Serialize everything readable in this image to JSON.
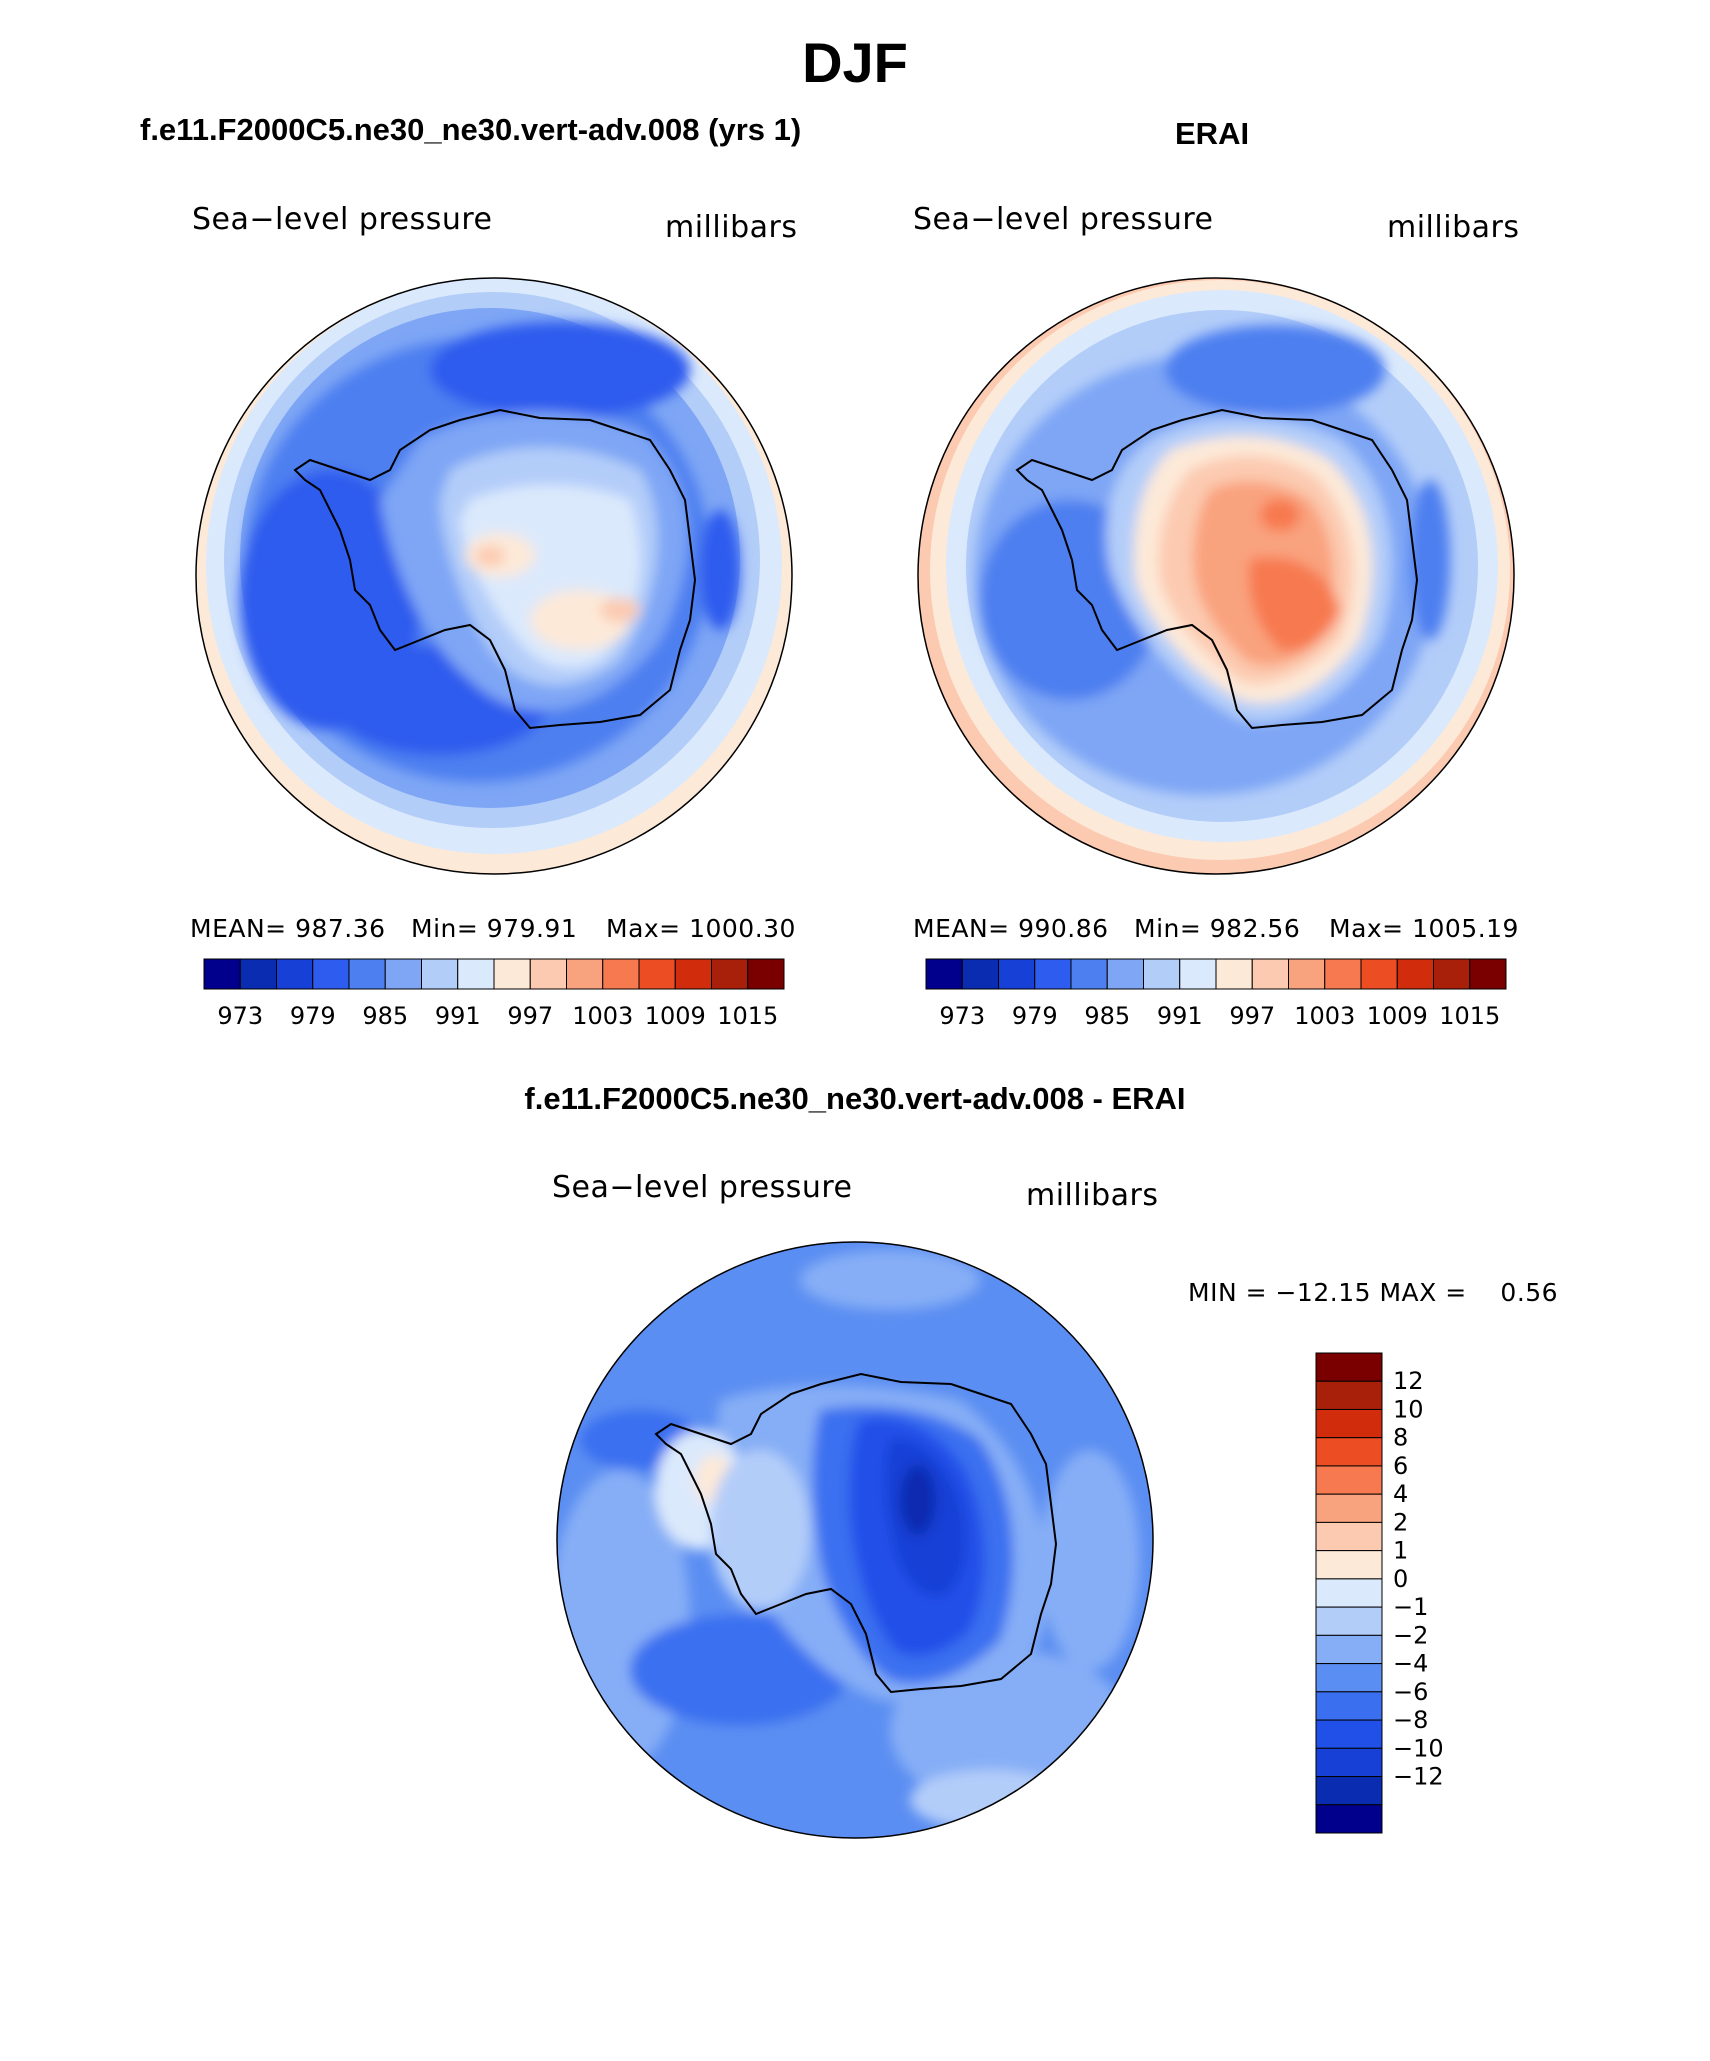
{
  "figure": {
    "title": "DJF"
  },
  "panels": [
    {
      "title": "f.e11.F2000C5.ne30_ne30.vert-adv.008 (yrs 1)",
      "left_label": "Sea−level pressure",
      "right_label": "millibars",
      "stats": {
        "mean": "MEAN= 987.36",
        "min": "Min= 979.91",
        "max": "Max= 1000.30"
      }
    },
    {
      "title": "ERAI",
      "left_label": "Sea−level pressure",
      "right_label": "millibars",
      "stats": {
        "mean": "MEAN= 990.86",
        "min": "Min= 982.56",
        "max": "Max= 1005.19"
      }
    },
    {
      "title": "f.e11.F2000C5.ne30_ne30.vert-adv.008 - ERAI",
      "left_label": "Sea−level pressure",
      "right_label": "millibars",
      "stats": {
        "minmax": "MIN = −12.15 MAX =    0.56"
      }
    }
  ],
  "colorbar_abs": {
    "colors": [
      "#00008c",
      "#0a2cb0",
      "#1740d6",
      "#2e5cee",
      "#4d7ff0",
      "#7ea6f5",
      "#b3cdf9",
      "#dbe9fc",
      "#fde9d8",
      "#fccab0",
      "#f9a27e",
      "#f77950",
      "#ec4d22",
      "#d12c0c",
      "#a9200a",
      "#7a0000"
    ],
    "tick_labels": [
      "973",
      "979",
      "985",
      "991",
      "997",
      "1003",
      "1009",
      "1015"
    ],
    "tick_positions": [
      1,
      3,
      5,
      7,
      9,
      11,
      13,
      15
    ]
  },
  "colorbar_diff": {
    "colors": [
      "#00008c",
      "#0a2cb0",
      "#1740d6",
      "#2050e8",
      "#3a6ff0",
      "#5b8ef2",
      "#86aef6",
      "#b3cdf9",
      "#dbe9fc",
      "#fde9d8",
      "#fccab0",
      "#f9a27e",
      "#f77950",
      "#ec4d22",
      "#d12c0c",
      "#a9200a",
      "#7a0000"
    ],
    "tick_labels": [
      "12",
      "10",
      "8",
      "6",
      "4",
      "2",
      "1",
      "0",
      "−1",
      "−2",
      "−4",
      "−6",
      "−8",
      "−10",
      "−12"
    ]
  },
  "chart_data": [
    {
      "type": "heatmap",
      "projection": "south-polar stereographic",
      "title": "f.e11.F2000C5.ne30_ne30.vert-adv.008 (yrs 1)",
      "variable": "Sea-level pressure",
      "units": "millibars",
      "mean": 987.36,
      "min": 979.91,
      "max": 1000.3,
      "contour_levels": [
        973,
        976,
        979,
        982,
        985,
        988,
        991,
        994,
        997,
        1000,
        1003,
        1006,
        1009,
        1012,
        1015
      ]
    },
    {
      "type": "heatmap",
      "projection": "south-polar stereographic",
      "title": "ERAI",
      "variable": "Sea-level pressure",
      "units": "millibars",
      "mean": 990.86,
      "min": 982.56,
      "max": 1005.19,
      "contour_levels": [
        973,
        976,
        979,
        982,
        985,
        988,
        991,
        994,
        997,
        1000,
        1003,
        1006,
        1009,
        1012,
        1015
      ]
    },
    {
      "type": "heatmap",
      "projection": "south-polar stereographic",
      "title": "f.e11.F2000C5.ne30_ne30.vert-adv.008 - ERAI",
      "variable": "Sea-level pressure",
      "units": "millibars",
      "min": -12.15,
      "max": 0.56,
      "contour_levels": [
        -12,
        -10,
        -8,
        -6,
        -4,
        -2,
        -1,
        0,
        1,
        2,
        4,
        6,
        8,
        10,
        12
      ]
    }
  ]
}
